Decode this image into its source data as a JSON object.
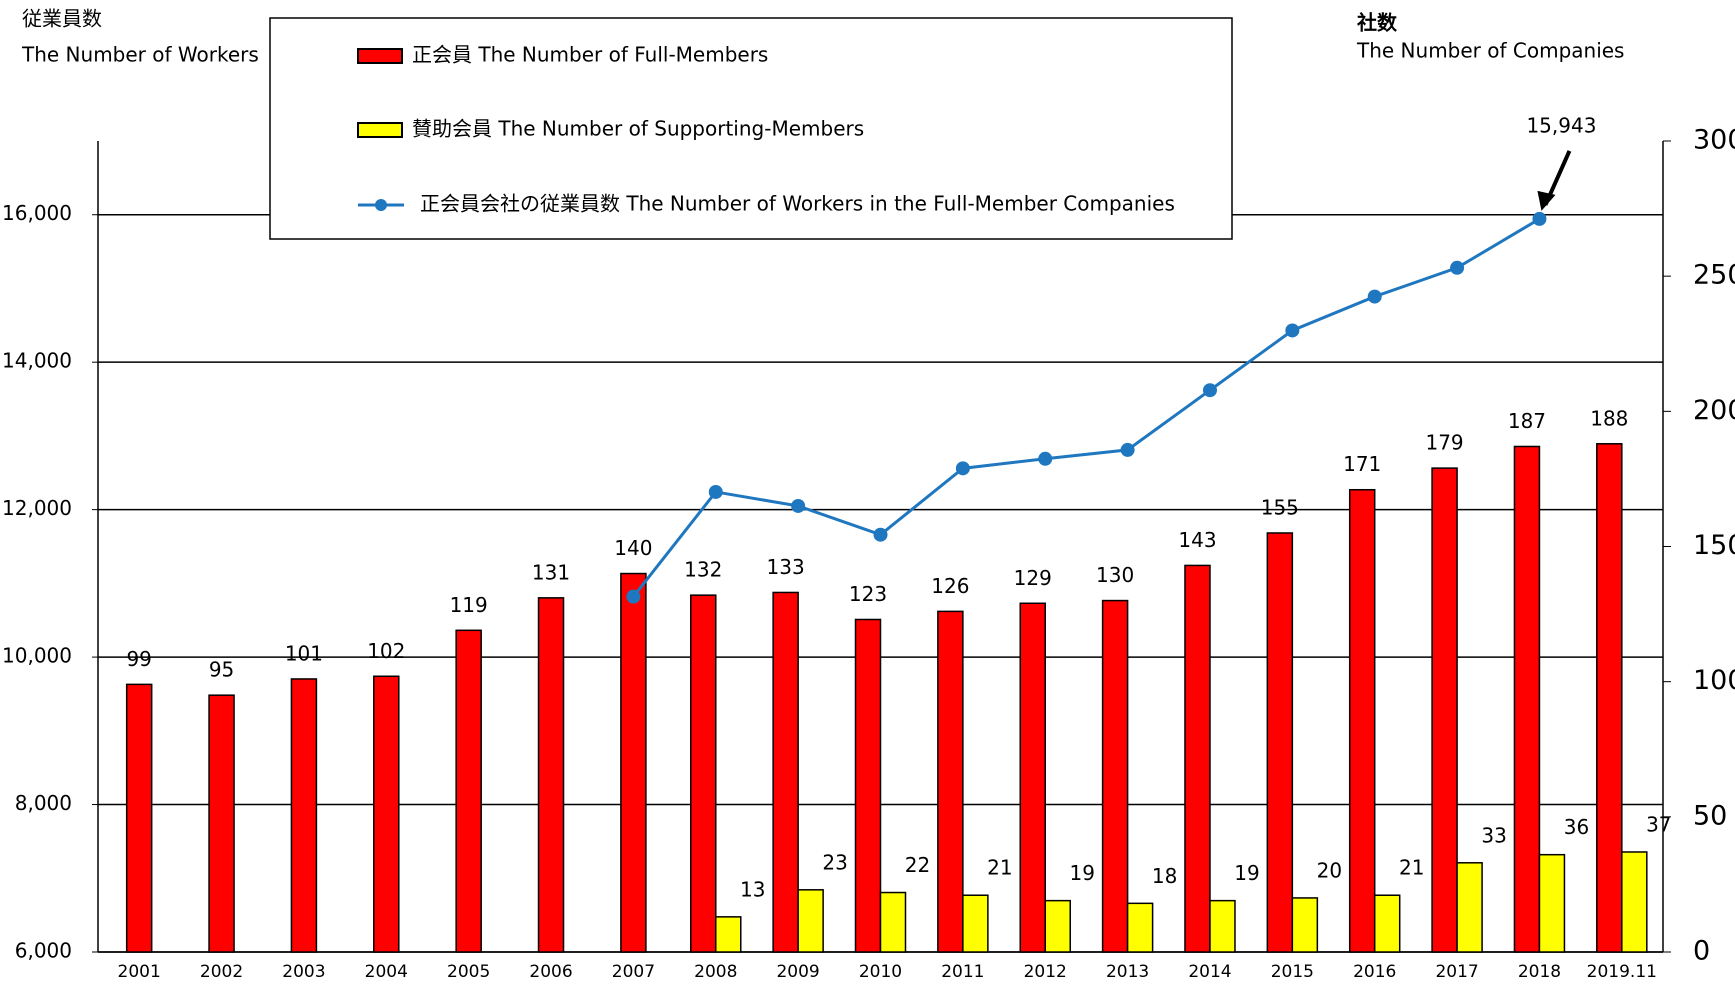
{
  "chart_data": {
    "type": "bar_line",
    "y_axis_title": "従業員数",
    "y_axis_subtitle": "The Number of Workers",
    "y2_axis_title": "社数",
    "y2_axis_subtitle": "The Number of Companies",
    "categories": [
      "2001",
      "2002",
      "2003",
      "2004",
      "2005",
      "2006",
      "2007",
      "2008",
      "2009",
      "2010",
      "2011",
      "2012",
      "2013",
      "2014",
      "2015",
      "2016",
      "2017",
      "2018",
      "2019.11"
    ],
    "series": [
      {
        "name": "正会員 The Number of Full-Members",
        "type": "bar",
        "axis": "y2",
        "color": "#ff0000",
        "values": [
          99,
          95,
          101,
          102,
          119,
          131,
          140,
          132,
          133,
          123,
          126,
          129,
          130,
          143,
          155,
          171,
          179,
          187,
          188
        ]
      },
      {
        "name": "賛助会員 The Number of Supporting-Members",
        "type": "bar",
        "axis": "y2",
        "color": "#ffff00",
        "values": [
          null,
          null,
          null,
          null,
          null,
          null,
          null,
          13,
          23,
          22,
          21,
          19,
          18,
          19,
          20,
          21,
          33,
          36,
          37
        ]
      },
      {
        "name": "正会員会社の従業員数 The Number of Workers in the Full-Member Companies",
        "type": "line",
        "axis": "y",
        "color": "#1f77c0",
        "values": [
          null,
          null,
          null,
          null,
          null,
          null,
          10820,
          12240,
          12050,
          11660,
          12560,
          12690,
          12810,
          13620,
          14430,
          14890,
          15280,
          15943,
          null
        ],
        "value_labels": [
          null,
          null,
          null,
          null,
          null,
          null,
          null,
          null,
          null,
          null,
          null,
          null,
          null,
          null,
          null,
          null,
          null,
          "15,943",
          null
        ]
      }
    ],
    "ylim": [
      6000,
      17000
    ],
    "yticks": [
      {
        "value": 6000,
        "label": "6,000"
      },
      {
        "value": 8000,
        "label": "8,000"
      },
      {
        "value": 10000,
        "label": "10,000"
      },
      {
        "value": 12000,
        "label": "12,000"
      },
      {
        "value": 14000,
        "label": "14,000"
      },
      {
        "value": 16000,
        "label": "16,000"
      }
    ],
    "y2lim": [
      0,
      300
    ],
    "y2ticks": [
      0,
      50,
      100,
      150,
      200,
      250,
      300
    ],
    "grid": true
  }
}
